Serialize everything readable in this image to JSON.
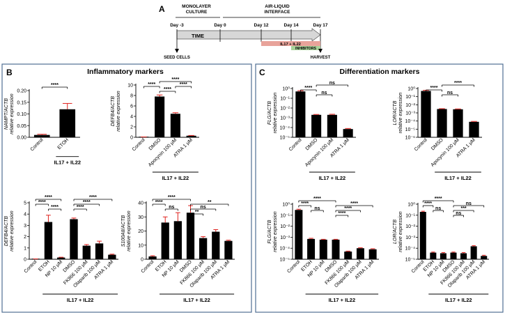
{
  "figure": {
    "colors": {
      "bar": "#000000",
      "error": "#e0201c",
      "panel_border": "#4f6f93",
      "arrow_fill": "#d7d7d7",
      "il_bar": "#e8a39a",
      "inhib_bar": "#a9d39a"
    },
    "panel_a": {
      "letter": "A",
      "monolayer": "MONOLAYER\nCULTURE",
      "ali": "AIR-LIQUID\nINTERFACE",
      "days": [
        "Day -3",
        "Day 0",
        "Day 12",
        "Day 14",
        "Day 17"
      ],
      "time": "TIME",
      "il_label": "IL17 + IL22",
      "inhib_label": "INHIBITORS",
      "seed": "SEED CELLS",
      "harvest": "HARVEST"
    },
    "panel_b": {
      "letter": "B",
      "title": "Inflammatory markers"
    },
    "panel_c": {
      "letter": "C",
      "title": "Differentiation markers"
    }
  },
  "chart_data": [
    {
      "id": "nampt",
      "type": "bar",
      "ylabel": "NAMPT/ACTB\nrelative expression",
      "categories": [
        "Control",
        "ETOH"
      ],
      "values": [
        0.01,
        0.12
      ],
      "errors": [
        0.003,
        0.025
      ],
      "ylim": [
        0,
        0.2
      ],
      "yticks": [
        "0.00",
        "0.05",
        "0.10",
        "0.15",
        "0.20"
      ],
      "ytick_values": [
        0,
        0.05,
        0.1,
        0.15,
        0.2
      ],
      "group": "IL17 + IL22",
      "group_span": [
        1,
        1
      ],
      "sig": [
        {
          "a": 0,
          "b": 1,
          "label": "****"
        }
      ]
    },
    {
      "id": "defb4_top",
      "type": "bar",
      "ylabel": "DEFB4/ACTB\nrelative expression",
      "categories": [
        "Control",
        "DMSO",
        "Apocynin 100 μM",
        "ATRA 1 μM"
      ],
      "values": [
        0.05,
        7.8,
        4.5,
        0.3
      ],
      "errors": [
        0.02,
        0.3,
        0.2,
        0.05
      ],
      "ylim": [
        0,
        10
      ],
      "yticks": [
        "0",
        "2",
        "4",
        "6",
        "8",
        "10"
      ],
      "ytick_values": [
        0,
        2,
        4,
        6,
        8,
        10
      ],
      "group": "IL17 + IL22",
      "group_span": [
        1,
        3
      ],
      "sig": [
        {
          "a": 1,
          "b": 3,
          "label": "****"
        },
        {
          "a": 0,
          "b": 1,
          "label": "****"
        },
        {
          "a": 1,
          "b": 2,
          "label": "****"
        },
        {
          "a": 2,
          "b": 3,
          "label": "****"
        }
      ]
    },
    {
      "id": "defb4_bot",
      "type": "bar",
      "ylabel": "DEFB4/ACTB\nrelative expression",
      "categories": [
        "Control",
        "ETOH",
        "NP 10 μM",
        "DMSO",
        "FK866 100 μM",
        "Olaparib 100 μM",
        "ATRA 1 μM"
      ],
      "values": [
        0.02,
        3.3,
        0.15,
        3.55,
        1.2,
        1.4,
        0.4
      ],
      "errors": [
        0.01,
        0.6,
        0.03,
        0.1,
        0.1,
        0.2,
        0.05
      ],
      "ylim": [
        0,
        5
      ],
      "yticks": [
        "0",
        "1",
        "2",
        "3",
        "4",
        "5"
      ],
      "ytick_values": [
        0,
        1,
        2,
        3,
        4,
        5
      ],
      "group": "IL17 + IL22",
      "group_span": [
        1,
        6
      ],
      "sig": [
        {
          "a": 0,
          "b": 2,
          "label": "****"
        },
        {
          "a": 3,
          "b": 6,
          "label": "****"
        },
        {
          "a": 0,
          "b": 1,
          "label": "****"
        },
        {
          "a": 1,
          "b": 2,
          "label": "****"
        },
        {
          "a": 3,
          "b": 5,
          "label": "****"
        },
        {
          "a": 3,
          "b": 4,
          "label": "****"
        }
      ]
    },
    {
      "id": "s100a8",
      "type": "bar",
      "ylabel": "S100A8/ACTB\nrelative expression",
      "categories": [
        "Control",
        "ETOH",
        "NP 10 μM",
        "DMSO",
        "FK866 100 μM",
        "Olaparib 100 μM",
        "ATRA 1 μM"
      ],
      "values": [
        2,
        26,
        27,
        33,
        15,
        19.5,
        13
      ],
      "errors": [
        0.5,
        4,
        6,
        5,
        1,
        1.5,
        0.5
      ],
      "ylim": [
        0,
        40
      ],
      "yticks": [
        "0",
        "10",
        "20",
        "30",
        "40"
      ],
      "ytick_values": [
        0,
        10,
        20,
        30,
        40
      ],
      "group": "IL17 + IL22",
      "group_span": [
        1,
        6
      ],
      "sig": [
        {
          "a": 0,
          "b": 3,
          "label": "****"
        },
        {
          "a": 3,
          "b": 6,
          "label": "**"
        },
        {
          "a": 0,
          "b": 1,
          "label": "****"
        },
        {
          "a": 1,
          "b": 2,
          "label": "ns"
        },
        {
          "a": 3,
          "b": 5,
          "label": "ns"
        },
        {
          "a": 3,
          "b": 4,
          "label": "**"
        }
      ]
    },
    {
      "id": "flg_top",
      "type": "bar",
      "scale": "log",
      "ylabel": "FLG/ACTB\nrelative expression",
      "categories": [
        "Control",
        "DMSO",
        "Apocynin 100 μM",
        "ATRA 1 μM"
      ],
      "values": [
        0.5,
        0.002,
        0.002,
        7e-05
      ],
      "errors": [
        0.1,
        0.0002,
        0.0003,
        1e-05
      ],
      "ylim": [
        1e-05,
        1
      ],
      "yticks": [
        "10⁻⁵",
        "10⁻⁴",
        "10⁻³",
        "10⁻²",
        "10⁻¹",
        "10⁰"
      ],
      "ytick_values": [
        1e-05,
        0.0001,
        0.001,
        0.01,
        0.1,
        1
      ],
      "group": "IL17 + IL22",
      "group_span": [
        1,
        3
      ],
      "sig": [
        {
          "a": 1,
          "b": 3,
          "label": "ns"
        },
        {
          "a": 0,
          "b": 1,
          "label": "****"
        },
        {
          "a": 1,
          "b": 2,
          "label": "ns"
        }
      ]
    },
    {
      "id": "lor_top",
      "type": "bar",
      "scale": "log",
      "ylabel": "LOR/ACTB\nrelative expression",
      "categories": [
        "Control",
        "DMSO",
        "Apocynin 100 μM",
        "ATRA 1 μM"
      ],
      "values": [
        0.5,
        0.003,
        0.0028,
        8e-05
      ],
      "errors": [
        0.1,
        0.0003,
        0.0003,
        1e-05
      ],
      "ylim": [
        1e-06,
        1
      ],
      "yticks": [
        "10⁻⁶",
        "10⁻⁵",
        "10⁻⁴",
        "10⁻³",
        "10⁻²",
        "10⁻¹",
        "10⁰"
      ],
      "ytick_values": [
        1e-06,
        1e-05,
        0.0001,
        0.001,
        0.01,
        0.1,
        1
      ],
      "group": "IL17 + IL22",
      "group_span": [
        1,
        3
      ],
      "sig": [
        {
          "a": 1,
          "b": 3,
          "label": "****"
        },
        {
          "a": 0,
          "b": 1,
          "label": "****"
        },
        {
          "a": 1,
          "b": 2,
          "label": "ns"
        }
      ]
    },
    {
      "id": "flg_bot",
      "type": "bar",
      "scale": "log",
      "ylabel": "FLG/ACTB\nrelative expression",
      "categories": [
        "Control",
        "ETOH",
        "NP 10 μM",
        "DMSO",
        "FK866 100 μM",
        "Olaparib 100 μM",
        "ATRA 1 μM"
      ],
      "values": [
        0.3,
        0.0007,
        0.0006,
        0.0006,
        5e-05,
        0.0001,
        8e-05
      ],
      "errors": [
        0.05,
        0.0001,
        5e-05,
        5e-05,
        5e-06,
        1e-05,
        1e-05
      ],
      "ylim": [
        1e-05,
        1
      ],
      "yticks": [
        "10⁻⁵",
        "10⁻⁴",
        "10⁻³",
        "10⁻²",
        "10⁻¹",
        "10⁰"
      ],
      "ytick_values": [
        1e-05,
        0.0001,
        0.001,
        0.01,
        0.1,
        1
      ],
      "group": "IL17 + IL22",
      "group_span": [
        1,
        6
      ],
      "sig": [
        {
          "a": 0,
          "b": 3,
          "label": "****"
        },
        {
          "a": 3,
          "b": 6,
          "label": "****"
        },
        {
          "a": 0,
          "b": 1,
          "label": "****"
        },
        {
          "a": 1,
          "b": 2,
          "label": "ns"
        },
        {
          "a": 3,
          "b": 5,
          "label": "****"
        },
        {
          "a": 3,
          "b": 4,
          "label": "****"
        }
      ]
    },
    {
      "id": "lor_bot",
      "type": "bar",
      "scale": "log",
      "ylabel": "LOR/ACTB\nrelative expression",
      "categories": [
        "Control",
        "ETOH",
        "NP 10 μM",
        "DMSO",
        "FK866 100 μM",
        "Olaparib 100 μM",
        "ATRA 1 μM"
      ],
      "values": [
        0.2,
        4e-05,
        3.5e-05,
        4e-05,
        3.5e-05,
        0.00015,
        2e-05
      ],
      "errors": [
        0.03,
        5e-06,
        5e-06,
        5e-06,
        5e-06,
        2e-05,
        3e-06
      ],
      "ylim": [
        1e-05,
        1
      ],
      "yticks": [
        "10⁻⁵",
        "10⁻⁴",
        "10⁻³",
        "10⁻²",
        "10⁻¹",
        "10⁰"
      ],
      "ytick_values": [
        1e-05,
        0.0001,
        0.001,
        0.01,
        0.1,
        1
      ],
      "group": "IL17 + IL22",
      "group_span": [
        1,
        6
      ],
      "sig": [
        {
          "a": 0,
          "b": 3,
          "label": "****"
        },
        {
          "a": 3,
          "b": 6,
          "label": "ns"
        },
        {
          "a": 0,
          "b": 1,
          "label": "****"
        },
        {
          "a": 1,
          "b": 2,
          "label": "ns"
        },
        {
          "a": 3,
          "b": 5,
          "label": "***"
        },
        {
          "a": 3,
          "b": 4,
          "label": "ns"
        }
      ]
    }
  ]
}
